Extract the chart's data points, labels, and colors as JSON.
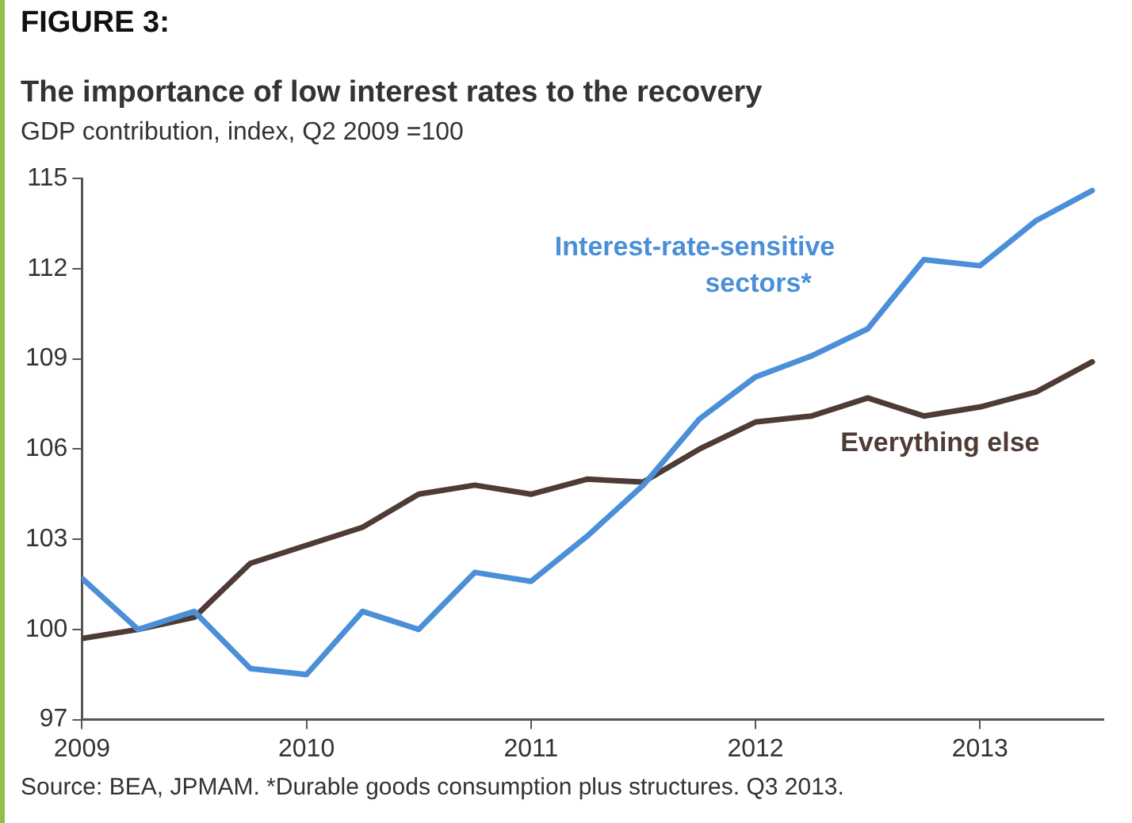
{
  "chart_data": {
    "type": "line",
    "title": "The importance of low interest rates to the recovery",
    "subtitle": "GDP contribution, index, Q2 2009 =100",
    "x": [
      2009,
      2009.25,
      2009.5,
      2009.75,
      2010,
      2010.25,
      2010.5,
      2010.75,
      2011,
      2011.25,
      2011.5,
      2011.75,
      2012,
      2012.25,
      2012.5,
      2012.75,
      2013,
      2013.25,
      2013.5
    ],
    "series": [
      {
        "name": "Interest-rate-sensitive sectors*",
        "color": "#4a8fd8",
        "values": [
          101.7,
          100.0,
          100.6,
          98.7,
          98.5,
          100.6,
          100.0,
          101.9,
          101.6,
          103.1,
          104.8,
          107.0,
          108.4,
          109.1,
          110.0,
          112.3,
          112.1,
          113.6,
          114.6
        ]
      },
      {
        "name": "Everything else",
        "color": "#4e3b34",
        "values": [
          99.7,
          100.0,
          100.4,
          102.2,
          102.8,
          103.4,
          104.5,
          104.8,
          104.5,
          105.0,
          104.9,
          106.0,
          106.9,
          107.1,
          107.7,
          107.1,
          107.4,
          107.9,
          108.9
        ]
      }
    ],
    "xlim": [
      2009,
      2013.55
    ],
    "xticks": [
      2009,
      2010,
      2011,
      2012,
      2013
    ],
    "ylim": [
      97,
      115
    ],
    "yticks": [
      97,
      100,
      103,
      106,
      109,
      112,
      115
    ],
    "grid": false,
    "legend": false,
    "marker": "none",
    "line_style": "solid",
    "annotations": [
      "FIGURE 3:",
      "Source: BEA, JPMAM. *Durable goods consumption plus structures. Q3 2013."
    ]
  }
}
